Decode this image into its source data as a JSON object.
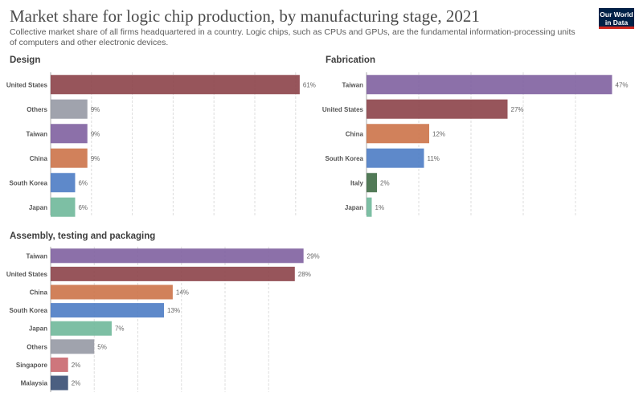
{
  "title": "Market share for logic chip production, by manufacturing stage, 2021",
  "subtitle": "Collective market share of all firms headquartered in a country. Logic chips, such as CPUs and GPUs, are the fundamental information-processing units of computers and other electronic devices.",
  "logo": {
    "line1": "Our World",
    "line2": "in Data"
  },
  "chart_data": [
    {
      "type": "bar",
      "orientation": "horizontal",
      "title": "Design",
      "categories": [
        "United States",
        "Others",
        "Taiwan",
        "China",
        "South Korea",
        "Japan"
      ],
      "values": [
        61,
        9,
        9,
        9,
        6,
        6
      ],
      "value_suffix": "%",
      "colors": [
        "#8c4349",
        "#9699a4",
        "#8060a0",
        "#cc7349",
        "#4d7cc4",
        "#6fb89a"
      ],
      "grid": true
    },
    {
      "type": "bar",
      "orientation": "horizontal",
      "title": "Fabrication",
      "categories": [
        "Taiwan",
        "United States",
        "China",
        "South Korea",
        "Italy",
        "Japan"
      ],
      "values": [
        47,
        27,
        12,
        11,
        2,
        1
      ],
      "value_suffix": "%",
      "colors": [
        "#8060a0",
        "#8c4349",
        "#cc7349",
        "#4d7cc4",
        "#3f6b45",
        "#6fb89a"
      ],
      "grid": true
    },
    {
      "type": "bar",
      "orientation": "horizontal",
      "title": "Assembly, testing and packaging",
      "categories": [
        "Taiwan",
        "United States",
        "China",
        "South Korea",
        "Japan",
        "Others",
        "Singapore",
        "Malaysia"
      ],
      "values": [
        29,
        28,
        14,
        13,
        7,
        5,
        2,
        2
      ],
      "value_suffix": "%",
      "colors": [
        "#8060a0",
        "#8c4349",
        "#cc7349",
        "#4d7cc4",
        "#6fb89a",
        "#9699a4",
        "#c9676e",
        "#374e73"
      ],
      "grid": true
    }
  ]
}
